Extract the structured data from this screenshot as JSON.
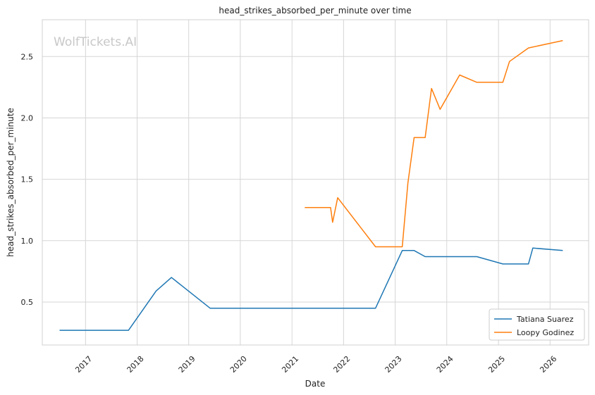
{
  "chart_data": {
    "type": "line",
    "title": "head_strikes_absorbed_per_minute over time",
    "xlabel": "Date",
    "ylabel": "head_strikes_absorbed_per_minute",
    "watermark": "WolfTickets.AI",
    "x_ticks": [
      "2017",
      "2018",
      "2019",
      "2020",
      "2021",
      "2022",
      "2023",
      "2024",
      "2025",
      "2026"
    ],
    "y_ticks": [
      "0.5",
      "1.0",
      "1.5",
      "2.0",
      "2.5"
    ],
    "xlim": [
      "2016-03-01",
      "2026-10-01"
    ],
    "ylim": [
      0.15,
      2.8
    ],
    "grid": true,
    "legend_position": "lower-right",
    "series": [
      {
        "name": "Tatiana Suarez",
        "color": "#1f77b4",
        "points": [
          [
            "2016-07-01",
            0.27
          ],
          [
            "2017-11-01",
            0.27
          ],
          [
            "2018-05-15",
            0.59
          ],
          [
            "2018-09-01",
            0.7
          ],
          [
            "2019-06-01",
            0.45
          ],
          [
            "2022-08-15",
            0.45
          ],
          [
            "2023-02-20",
            0.92
          ],
          [
            "2023-05-15",
            0.92
          ],
          [
            "2023-08-01",
            0.87
          ],
          [
            "2024-08-01",
            0.87
          ],
          [
            "2025-02-01",
            0.81
          ],
          [
            "2025-08-01",
            0.81
          ],
          [
            "2025-09-01",
            0.94
          ],
          [
            "2026-04-01",
            0.92
          ]
        ]
      },
      {
        "name": "Loopy Godinez",
        "color": "#ff7f0e",
        "points": [
          [
            "2021-04-01",
            1.27
          ],
          [
            "2021-10-01",
            1.27
          ],
          [
            "2021-10-15",
            1.15
          ],
          [
            "2021-11-20",
            1.35
          ],
          [
            "2022-08-15",
            0.95
          ],
          [
            "2023-02-20",
            0.95
          ],
          [
            "2023-04-01",
            1.47
          ],
          [
            "2023-05-15",
            1.84
          ],
          [
            "2023-08-01",
            1.84
          ],
          [
            "2023-09-15",
            2.24
          ],
          [
            "2023-11-15",
            2.07
          ],
          [
            "2024-04-01",
            2.35
          ],
          [
            "2024-08-01",
            2.29
          ],
          [
            "2025-02-01",
            2.29
          ],
          [
            "2025-03-20",
            2.46
          ],
          [
            "2025-08-01",
            2.57
          ],
          [
            "2026-04-01",
            2.63
          ]
        ]
      }
    ]
  }
}
